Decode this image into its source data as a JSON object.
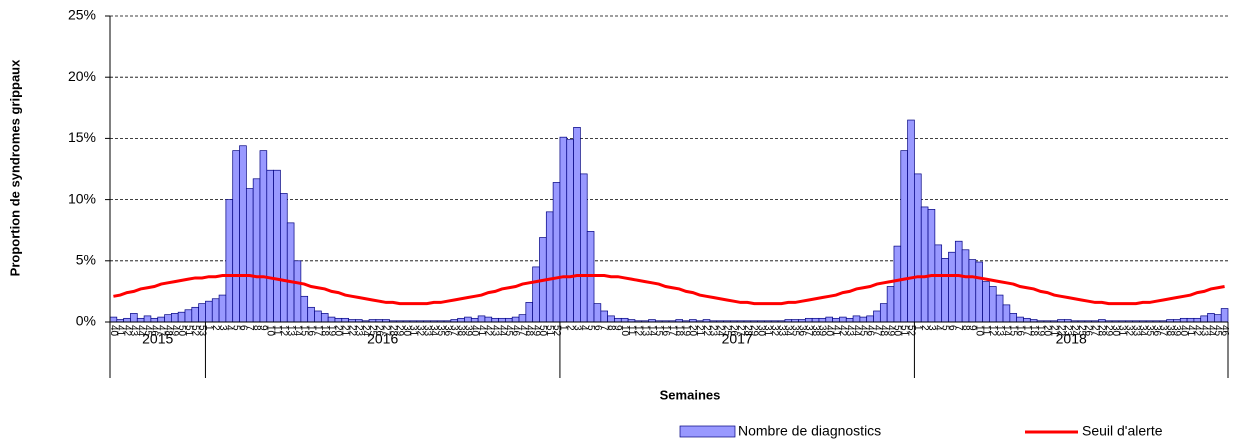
{
  "chart_data": {
    "type": "bar-line",
    "y_label": "Proportion de syndromes grippaux",
    "x_label": "Semaines",
    "categories": [
      "40",
      "41",
      "42",
      "43",
      "44",
      "45",
      "46",
      "47",
      "48",
      "49",
      "50",
      "51",
      "52",
      "53",
      "1",
      "2",
      "3",
      "4",
      "5",
      "6",
      "7",
      "8",
      "9",
      "10",
      "11",
      "12",
      "13",
      "14",
      "15",
      "16",
      "17",
      "18",
      "19",
      "20",
      "21",
      "22",
      "23",
      "24",
      "25",
      "26",
      "27",
      "28",
      "29",
      "30",
      "31",
      "32",
      "33",
      "34",
      "35",
      "36",
      "37",
      "38",
      "39",
      "40",
      "41",
      "42",
      "43",
      "44",
      "45",
      "46",
      "47",
      "48",
      "49",
      "50",
      "51",
      "52",
      "1",
      "2",
      "3",
      "4",
      "5",
      "6",
      "7",
      "8",
      "9",
      "10",
      "11",
      "12",
      "13",
      "14",
      "15",
      "16",
      "17",
      "18",
      "19",
      "20",
      "21",
      "22",
      "23",
      "24",
      "25",
      "26",
      "27",
      "28",
      "29",
      "30",
      "31",
      "32",
      "33",
      "34",
      "35",
      "36",
      "37",
      "38",
      "39",
      "40",
      "41",
      "42",
      "43",
      "44",
      "45",
      "46",
      "47",
      "48",
      "49",
      "50",
      "51",
      "52",
      "1",
      "2",
      "3",
      "4",
      "5",
      "6",
      "7",
      "8",
      "9",
      "10",
      "11",
      "12",
      "13",
      "14",
      "15",
      "16",
      "17",
      "18",
      "19",
      "20",
      "21",
      "22",
      "23",
      "24",
      "25",
      "26",
      "27",
      "28",
      "29",
      "30",
      "31",
      "32",
      "33",
      "34",
      "35",
      "36",
      "37",
      "38",
      "39",
      "40",
      "41",
      "42",
      "43",
      "44",
      "45",
      "46"
    ],
    "year_groups": [
      {
        "label": "2015",
        "count": 14
      },
      {
        "label": "2016",
        "count": 52
      },
      {
        "label": "2017",
        "count": 52
      },
      {
        "label": "2018",
        "count": 46
      }
    ],
    "series": [
      {
        "name": "Nombre de diagnostics",
        "kind": "bar",
        "color": "#9999ff",
        "values": [
          0.4,
          0.2,
          0.3,
          0.7,
          0.3,
          0.5,
          0.3,
          0.4,
          0.6,
          0.7,
          0.8,
          1.0,
          1.2,
          1.5,
          1.7,
          1.9,
          2.2,
          10.0,
          14.0,
          14.4,
          10.9,
          11.7,
          14.0,
          12.4,
          12.4,
          10.5,
          8.1,
          5.0,
          2.1,
          1.2,
          0.9,
          0.7,
          0.4,
          0.3,
          0.3,
          0.2,
          0.2,
          0.1,
          0.2,
          0.2,
          0.2,
          0.1,
          0.1,
          0.1,
          0.1,
          0.1,
          0.1,
          0.1,
          0.1,
          0.1,
          0.2,
          0.3,
          0.4,
          0.3,
          0.5,
          0.4,
          0.3,
          0.3,
          0.3,
          0.4,
          0.6,
          1.6,
          4.5,
          6.9,
          9.0,
          11.4,
          15.1,
          14.9,
          15.9,
          12.1,
          7.4,
          1.5,
          0.9,
          0.5,
          0.3,
          0.3,
          0.2,
          0.1,
          0.1,
          0.2,
          0.1,
          0.1,
          0.1,
          0.2,
          0.1,
          0.2,
          0.1,
          0.2,
          0.1,
          0.1,
          0.1,
          0.1,
          0.1,
          0.1,
          0.1,
          0.1,
          0.1,
          0.1,
          0.1,
          0.2,
          0.2,
          0.2,
          0.3,
          0.3,
          0.3,
          0.4,
          0.3,
          0.4,
          0.3,
          0.5,
          0.4,
          0.5,
          0.9,
          1.5,
          2.9,
          6.2,
          14.0,
          16.5,
          12.1,
          9.4,
          9.2,
          6.3,
          5.2,
          5.7,
          6.6,
          5.9,
          5.1,
          4.9,
          3.3,
          2.9,
          2.2,
          1.4,
          0.7,
          0.4,
          0.3,
          0.2,
          0.1,
          0.1,
          0.1,
          0.2,
          0.2,
          0.1,
          0.1,
          0.1,
          0.1,
          0.2,
          0.1,
          0.1,
          0.1,
          0.1,
          0.1,
          0.1,
          0.1,
          0.1,
          0.1,
          0.2,
          0.2,
          0.3,
          0.3,
          0.3,
          0.5,
          0.7,
          0.6,
          1.1
        ]
      },
      {
        "name": "Seuil d'alerte",
        "kind": "line",
        "color": "#ff0000",
        "values": [
          2.1,
          2.2,
          2.4,
          2.5,
          2.7,
          2.8,
          2.9,
          3.1,
          3.2,
          3.3,
          3.4,
          3.5,
          3.6,
          3.6,
          3.7,
          3.7,
          3.8,
          3.8,
          3.8,
          3.8,
          3.8,
          3.7,
          3.7,
          3.6,
          3.5,
          3.4,
          3.3,
          3.2,
          3.1,
          2.9,
          2.8,
          2.7,
          2.5,
          2.4,
          2.2,
          2.1,
          2.0,
          1.9,
          1.8,
          1.7,
          1.6,
          1.6,
          1.5,
          1.5,
          1.5,
          1.5,
          1.5,
          1.6,
          1.6,
          1.7,
          1.8,
          1.9,
          2.0,
          2.1,
          2.2,
          2.4,
          2.5,
          2.7,
          2.8,
          2.9,
          3.1,
          3.2,
          3.3,
          3.4,
          3.5,
          3.6,
          3.7,
          3.7,
          3.8,
          3.8,
          3.8,
          3.8,
          3.8,
          3.7,
          3.7,
          3.6,
          3.5,
          3.4,
          3.3,
          3.2,
          3.1,
          2.9,
          2.8,
          2.7,
          2.5,
          2.4,
          2.2,
          2.1,
          2.0,
          1.9,
          1.8,
          1.7,
          1.6,
          1.6,
          1.5,
          1.5,
          1.5,
          1.5,
          1.5,
          1.6,
          1.6,
          1.7,
          1.8,
          1.9,
          2.0,
          2.1,
          2.2,
          2.4,
          2.5,
          2.7,
          2.8,
          2.9,
          3.1,
          3.2,
          3.3,
          3.4,
          3.5,
          3.6,
          3.7,
          3.7,
          3.8,
          3.8,
          3.8,
          3.8,
          3.8,
          3.7,
          3.7,
          3.6,
          3.5,
          3.4,
          3.3,
          3.2,
          3.1,
          2.9,
          2.8,
          2.7,
          2.5,
          2.4,
          2.2,
          2.1,
          2.0,
          1.9,
          1.8,
          1.7,
          1.6,
          1.6,
          1.5,
          1.5,
          1.5,
          1.5,
          1.5,
          1.6,
          1.6,
          1.7,
          1.8,
          1.9,
          2.0,
          2.1,
          2.2,
          2.4,
          2.5,
          2.7,
          2.8,
          2.9
        ]
      }
    ],
    "ylim": [
      0,
      25
    ],
    "yticks": [
      {
        "value": 0,
        "label": "0%"
      },
      {
        "value": 5,
        "label": "5%"
      },
      {
        "value": 10,
        "label": "10%"
      },
      {
        "value": 15,
        "label": "15%"
      },
      {
        "value": 20,
        "label": "20%"
      },
      {
        "value": 25,
        "label": "25%"
      }
    ],
    "grid": true,
    "legend": "bottom-right"
  }
}
